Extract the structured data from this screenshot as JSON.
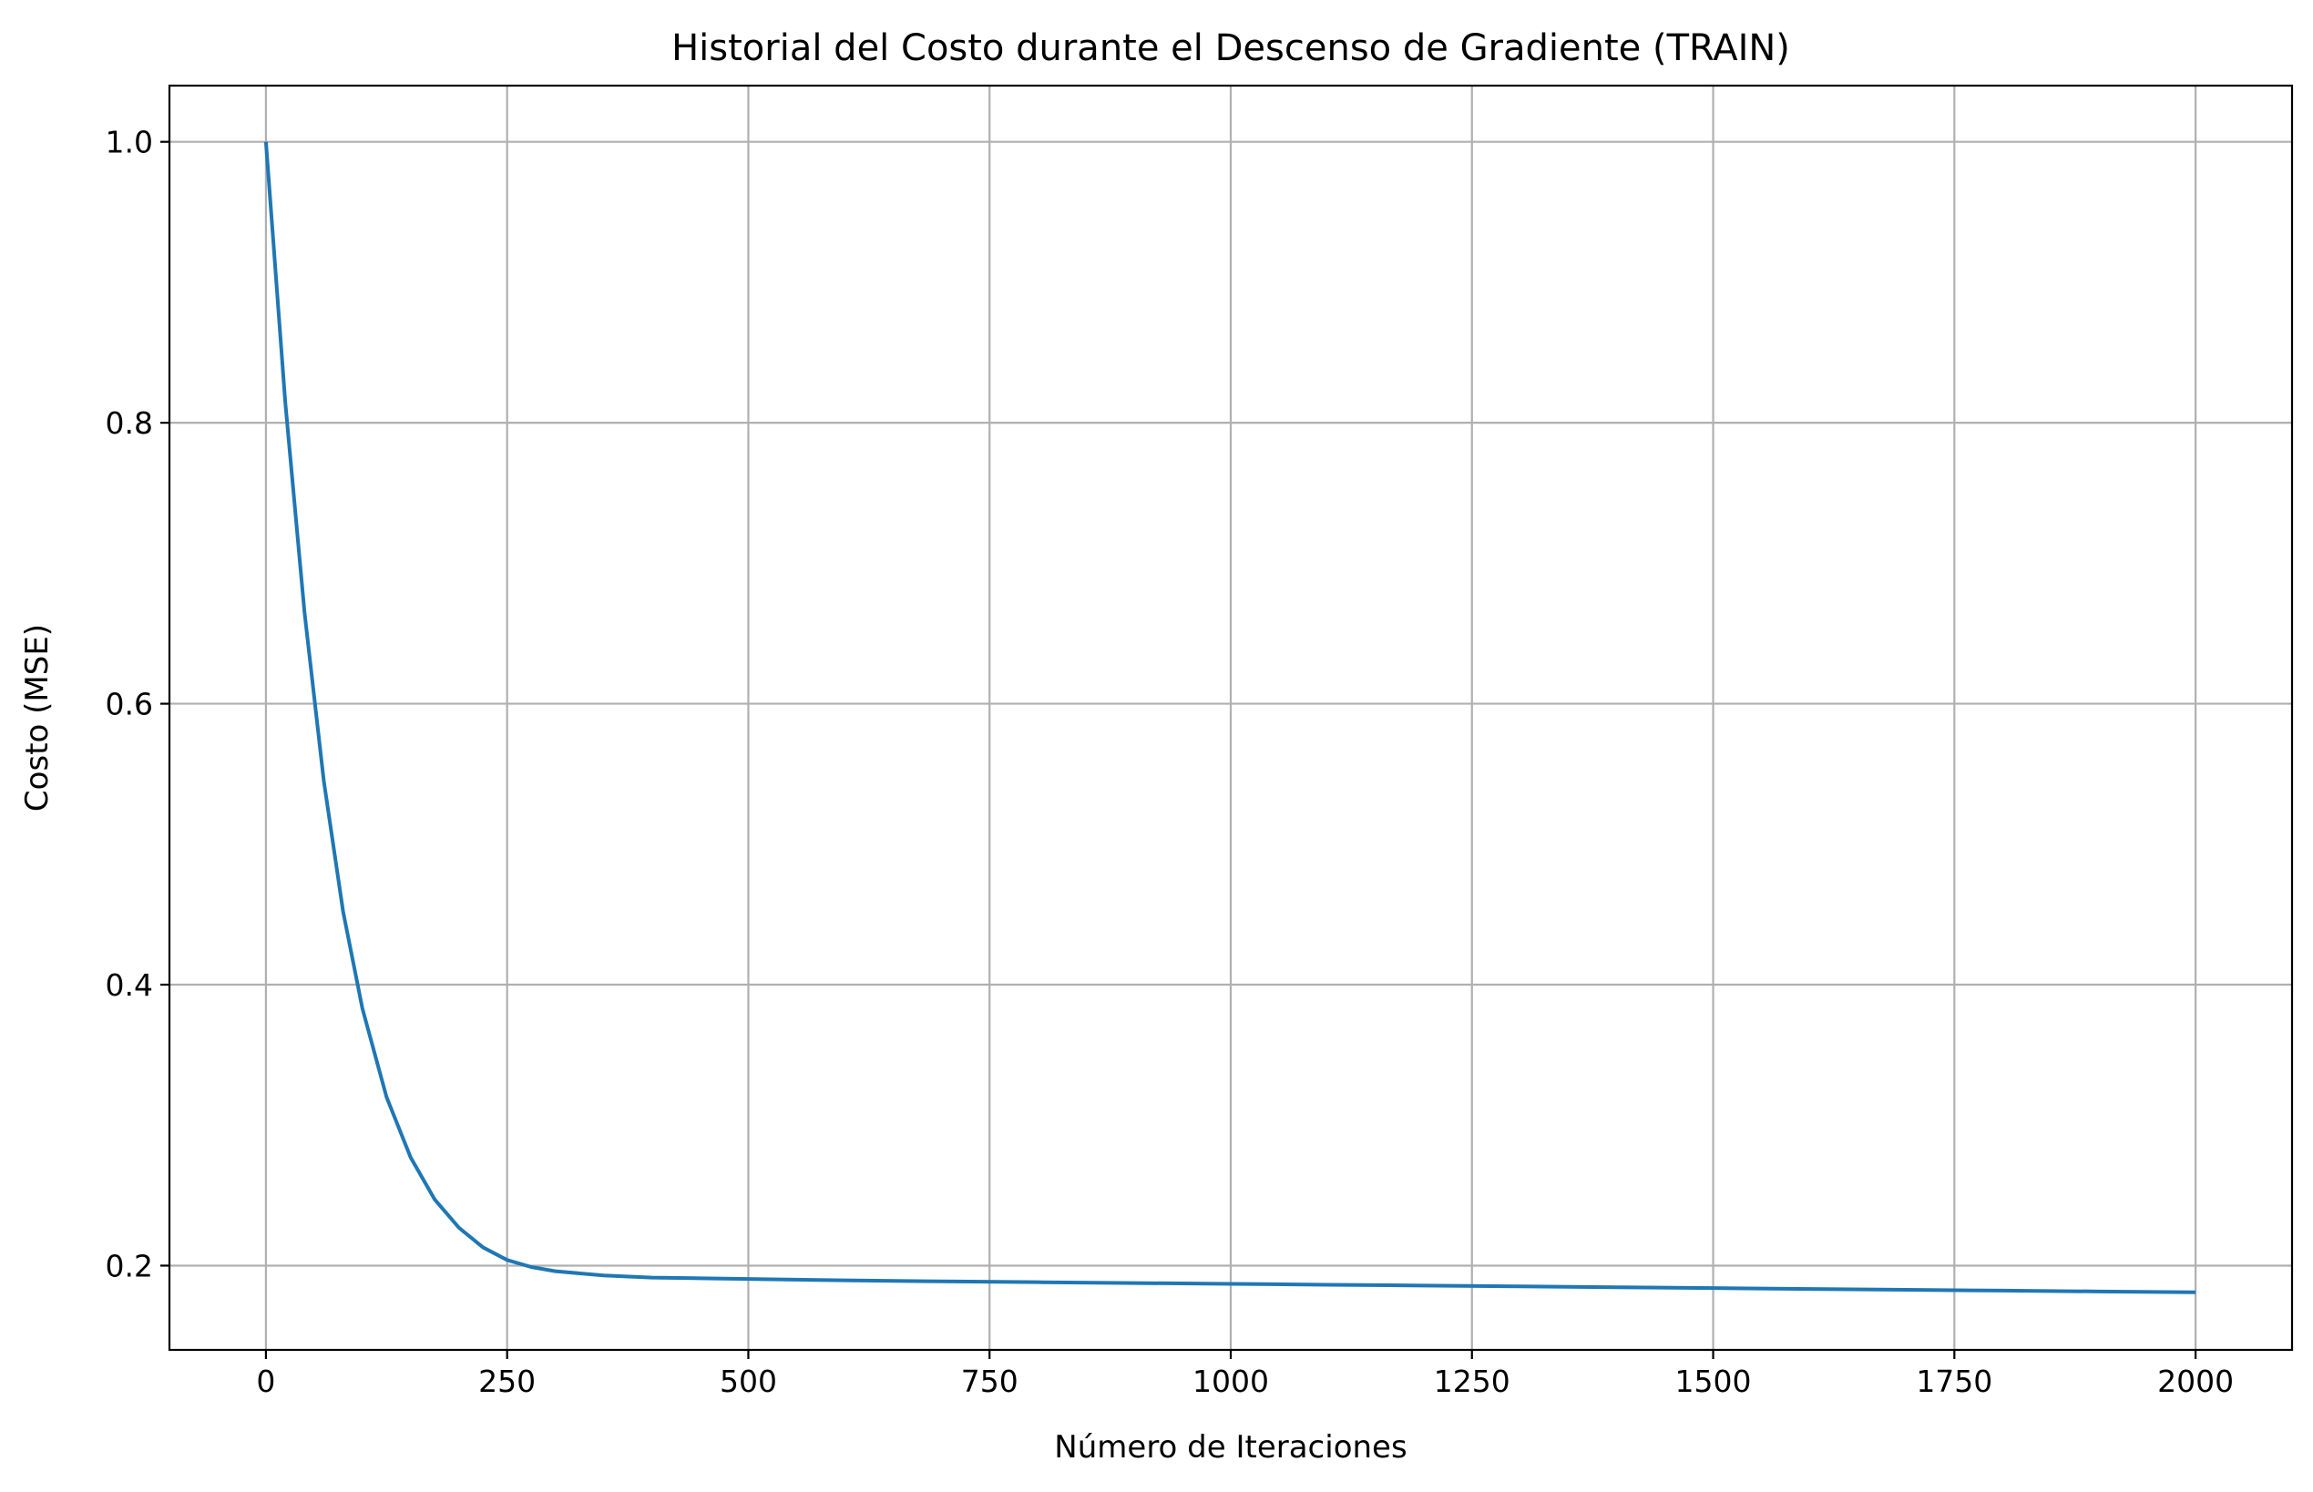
{
  "chart_data": {
    "type": "line",
    "title": "Historial del Costo durante el Descenso de Gradiente (TRAIN)",
    "xlabel": "Número de Iteraciones",
    "ylabel": "Costo (MSE)",
    "xlim": [
      -100,
      2100
    ],
    "ylim": [
      0.14,
      1.04
    ],
    "xticks": [
      0,
      250,
      500,
      750,
      1000,
      1250,
      1500,
      1750,
      2000
    ],
    "xtick_labels": [
      "0",
      "250",
      "500",
      "750",
      "1000",
      "1250",
      "1500",
      "1750",
      "2000"
    ],
    "yticks": [
      0.2,
      0.4,
      0.6,
      0.8,
      1.0
    ],
    "ytick_labels": [
      "0.2",
      "0.4",
      "0.6",
      "0.8",
      "1.0"
    ],
    "grid": true,
    "series": [
      {
        "color": "#1f77b4",
        "x": [
          0,
          20,
          40,
          60,
          80,
          100,
          125,
          150,
          175,
          200,
          225,
          250,
          275,
          300,
          350,
          400,
          450,
          500,
          600,
          700,
          800,
          900,
          1000,
          1100,
          1200,
          1300,
          1400,
          1500,
          1600,
          1700,
          1800,
          1900,
          2000
        ],
        "y": [
          1.0,
          0.815,
          0.665,
          0.545,
          0.452,
          0.383,
          0.32,
          0.277,
          0.247,
          0.227,
          0.213,
          0.204,
          0.199,
          0.196,
          0.193,
          0.1915,
          0.191,
          0.1905,
          0.1895,
          0.1888,
          0.1882,
          0.1876,
          0.187,
          0.1864,
          0.1858,
          0.1852,
          0.1846,
          0.184,
          0.1834,
          0.1828,
          0.1822,
          0.1816,
          0.181
        ]
      }
    ]
  }
}
